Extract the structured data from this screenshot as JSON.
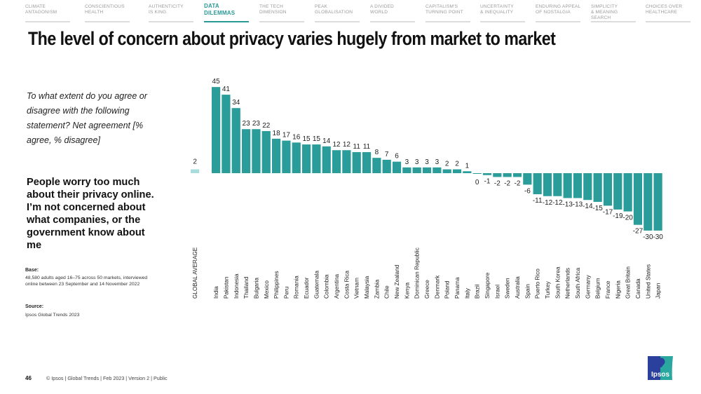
{
  "nav": {
    "items": [
      {
        "label": "CLIMATE\nANTAGONISM",
        "active": false
      },
      {
        "label": "CONSCIENTIOUS\nHEALTH",
        "active": false
      },
      {
        "label": "AUTHENTICITY\nIS KING",
        "active": false
      },
      {
        "label": "DATA\nDILEMMAS",
        "active": true
      },
      {
        "label": "THE TECH\nDIMENSION",
        "active": false
      },
      {
        "label": "PEAK\nGLOBALISATION",
        "active": false
      },
      {
        "label": "A DIVIDED\nWORLD",
        "active": false
      },
      {
        "label": "CAPITALISM'S\nTURNING POINT",
        "active": false
      },
      {
        "label": "UNCERTAINTY\n& INEQUALITY",
        "active": false
      },
      {
        "label": "ENDURING APPEAL\nOF NOSTALGIA",
        "active": false
      },
      {
        "label": "SIMPLICITY\n& MEANING SEARCH",
        "active": false
      },
      {
        "label": "CHOICES OVER\nHEALTHCARE",
        "active": false
      }
    ]
  },
  "title": "The level of concern about privacy varies hugely from market to market",
  "question": "To what extent do you agree or disagree with the following statement? Net agreement [% agree, % disagree]",
  "statement": "People worry too much about their privacy online. I’m not concerned about what companies, or the government know about me",
  "base": {
    "label": "Base:",
    "text": "48,580 adults aged 16–75 across 50 markets, interviewed online between 23 September and 14 November 2022"
  },
  "source": {
    "label": "Source:",
    "text": "Ipsos Global Trends 2023"
  },
  "footer": {
    "page_number": "46",
    "text": "© Ipsos | Global Trends | Feb 2023 | Version 2 | Public"
  },
  "logo": {
    "text": "Ipsos"
  },
  "colors": {
    "bar": "#2a9d9a",
    "average_bar": "#a9dcdc",
    "accent": "#2a9a97"
  },
  "chart_data": {
    "type": "bar",
    "title": "",
    "xlabel": "",
    "ylabel": "Net agreement (%)",
    "ylim": [
      -30,
      45
    ],
    "grid": false,
    "legend": "none",
    "average": {
      "category": "GLOBAL AVERAGE",
      "value": 2
    },
    "categories": [
      "India",
      "Pakistan",
      "Indonesia",
      "Thailand",
      "Bulgaria",
      "Mexico",
      "Philippines",
      "Peru",
      "Romania",
      "Ecuador",
      "Guatemala",
      "Colombia",
      "Argentina",
      "Costa Rica",
      "Vietnam",
      "Malaysia",
      "Zambia",
      "Chile",
      "New Zealand",
      "Kenya",
      "Dominican Republic",
      "Greece",
      "Denmark",
      "Poland",
      "Panama",
      "Italy",
      "Brazil",
      "Singapore",
      "Israel",
      "Sweden",
      "Australia",
      "Spain",
      "Puerto Rico",
      "Turkey",
      "South Korea",
      "Netherlands",
      "South Africa",
      "Germany",
      "Belgium",
      "France",
      "Nigeria",
      "Great Britain",
      "Canada",
      "United States",
      "Japan"
    ],
    "values": [
      45,
      41,
      34,
      23,
      23,
      22,
      18,
      17,
      16,
      15,
      15,
      14,
      12,
      12,
      11,
      11,
      8,
      7,
      6,
      3,
      3,
      3,
      3,
      2,
      2,
      1,
      0,
      -1,
      -2,
      -2,
      -2,
      -6,
      -11,
      -12,
      -12,
      -13,
      -13,
      -14,
      -15,
      -17,
      -19,
      -20,
      -27,
      -30,
      -30
    ]
  }
}
